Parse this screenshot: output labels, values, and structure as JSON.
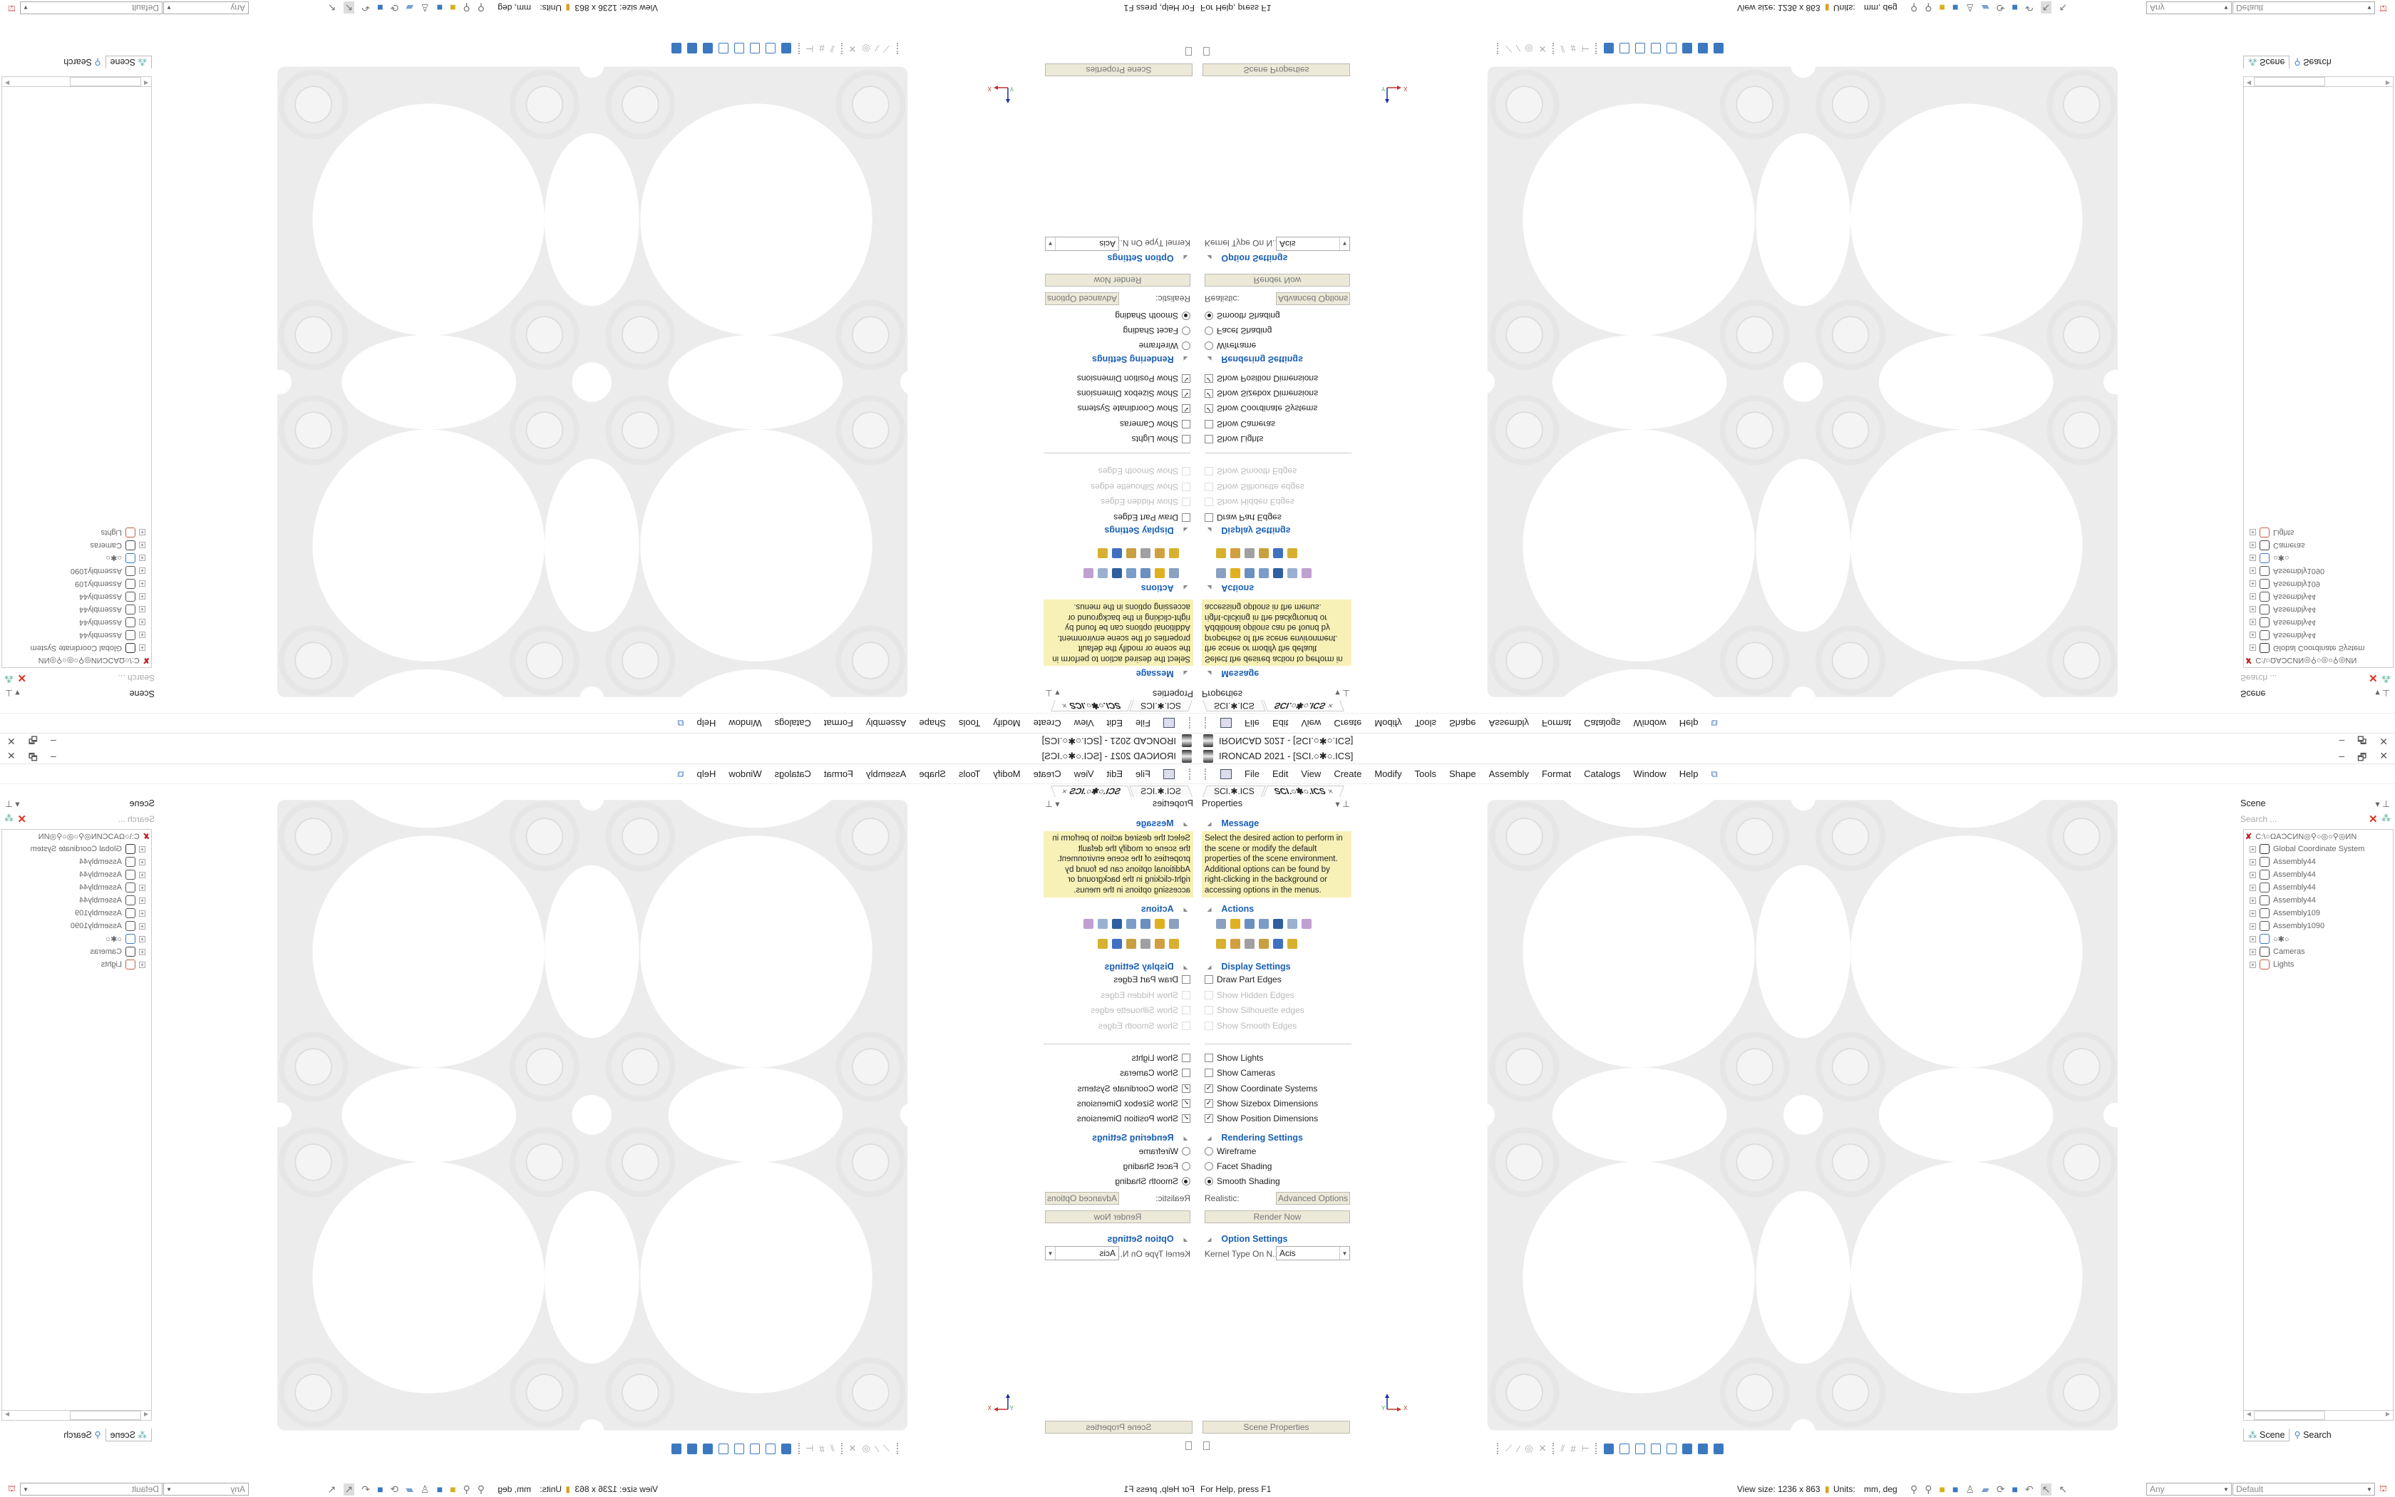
{
  "app": {
    "title": "IRONCAD 2021 - [SCI.○✱○.ICS]",
    "window_controls": [
      "–",
      "🗗",
      "✕"
    ]
  },
  "menu": [
    "File",
    "Edit",
    "View",
    "Create",
    "Modify",
    "Tools",
    "Shape",
    "Assembly",
    "Format",
    "Catalogs",
    "Window",
    "Help"
  ],
  "tabs": [
    {
      "label": "SCI.✱.ICS"
    },
    {
      "label": "SCI.○✱○.ICS",
      "close": "×"
    }
  ],
  "properties": {
    "title": "Properties",
    "message_header": "Message",
    "message": "Select the desired action to perform in the scene or modify the default properties of the scene environment. Additional options can be found by right-clicking in the background or accessing options in the menus.",
    "actions_header": "Actions",
    "action_icons": [
      {
        "name": "properties-list-icon",
        "color": "#8aa0c0"
      },
      {
        "name": "add-part-icon",
        "color": "#e0b020"
      },
      {
        "name": "rotate-scene-icon",
        "color": "#6a8fc0"
      },
      {
        "name": "link-icon",
        "color": "#7b9cc8"
      },
      {
        "name": "shield-icon",
        "color": "#2f5f9f"
      },
      {
        "name": "edit-sketch-icon",
        "color": "#9ab0d0"
      },
      {
        "name": "curve-chart-icon",
        "color": "#c0a0d0"
      },
      {
        "name": "camera-part-icon",
        "color": "#d8b030"
      },
      {
        "name": "gears-icon",
        "color": "#d0a040"
      },
      {
        "name": "table-icon",
        "color": "#a0a0a0"
      },
      {
        "name": "assembly-blocks-icon",
        "color": "#c8a040"
      },
      {
        "name": "axis-triad-icon",
        "color": "#4070c0"
      },
      {
        "name": "stack-blocks-icon",
        "color": "#d8b030"
      }
    ],
    "display_header": "Display Settings",
    "display": [
      {
        "label": "Draw Part Edges",
        "checked": false,
        "enabled": true
      },
      {
        "label": "Show Hidden Edges",
        "checked": false,
        "enabled": false
      },
      {
        "label": "Show Silhouette edges",
        "checked": false,
        "enabled": false
      },
      {
        "label": "Show Smooth Edges",
        "checked": false,
        "enabled": false
      }
    ],
    "show": [
      {
        "label": "Show Lights",
        "checked": false
      },
      {
        "label": "Show Cameras",
        "checked": false
      },
      {
        "label": "Show Coordinate Systems",
        "checked": true
      },
      {
        "label": "Show Sizebox Dimensions",
        "checked": true
      },
      {
        "label": "Show Position Dimensions",
        "checked": true
      }
    ],
    "rendering_header": "Rendering Settings",
    "rendering": [
      {
        "label": "Wireframe",
        "selected": false
      },
      {
        "label": "Facet Shading",
        "selected": false
      },
      {
        "label": "Smooth Shading",
        "selected": true
      }
    ],
    "realistic_label": "Realistic:",
    "advanced_options": "Advanced Options",
    "render_now": "Render Now",
    "option_header": "Option Settings",
    "kernel_label": "Kernel Type On N...",
    "kernel_value": "Acis",
    "scene_properties": "Scene Properties"
  },
  "scene": {
    "title": "Scene",
    "search_placeholder": "Search ...",
    "root": "C:\\○ΩAƆCИN◎⚲○◎○⚲◎ИN",
    "items": [
      {
        "label": "Global Coordinate System",
        "icon": "coordinate-system-icon"
      },
      {
        "label": "Assembly44",
        "icon": "assembly-icon"
      },
      {
        "label": "Assembly44",
        "icon": "assembly-icon"
      },
      {
        "label": "Assembly44",
        "icon": "assembly-icon"
      },
      {
        "label": "Assembly44",
        "icon": "assembly-icon"
      },
      {
        "label": "Assembly109",
        "icon": "assembly-icon"
      },
      {
        "label": "Assembly1090",
        "icon": "assembly-icon"
      },
      {
        "label": "○✱○",
        "icon": "part-icon"
      },
      {
        "label": "Cameras",
        "icon": "camera-icon"
      },
      {
        "label": "Lights",
        "icon": "light-icon"
      }
    ],
    "bottom_tabs": [
      "Scene",
      "Search"
    ]
  },
  "status": {
    "help": "For Help, press F1",
    "view_size": "View size: 1236 x 863",
    "units_label": "Units:",
    "units_value": "mm, deg",
    "filter_value": "Any",
    "style_value": "Default"
  },
  "axis": {
    "x_label": "X",
    "y_label": "Y"
  },
  "colors": {
    "accent": "#1a5fb4",
    "message_bg": "#f7f1b8",
    "button_bg": "#ece9d8",
    "part": "#ececec"
  }
}
